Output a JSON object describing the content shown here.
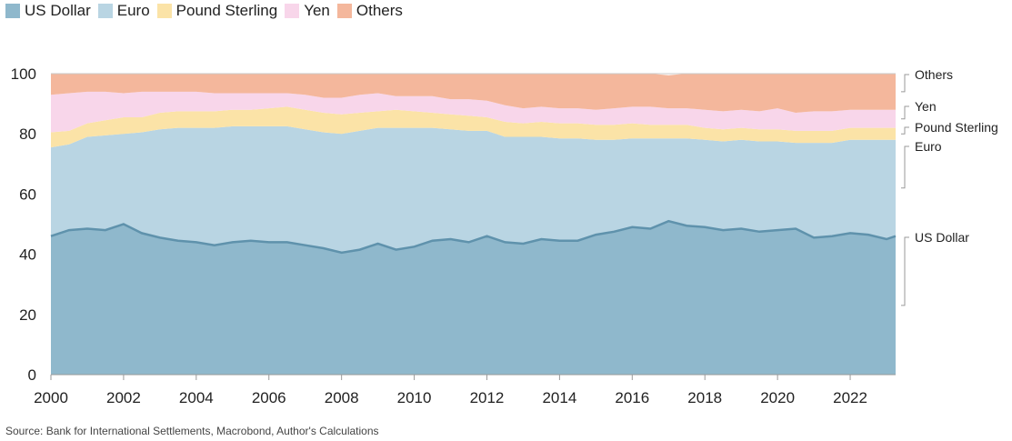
{
  "source": "Source: Bank for International Settlements, Macrobond, Author's Calculations",
  "chart_data": {
    "type": "area",
    "stacked": true,
    "xlim": [
      2000,
      2023.25
    ],
    "ylim": [
      0,
      100
    ],
    "x_ticks": [
      "2000",
      "2002",
      "2004",
      "2006",
      "2008",
      "2010",
      "2012",
      "2014",
      "2016",
      "2018",
      "2020",
      "2022"
    ],
    "y_ticks": [
      "0",
      "20",
      "40",
      "60",
      "80",
      "100"
    ],
    "legend_position": "top-left",
    "grid": true,
    "x": [
      2000,
      2000.5,
      2001,
      2001.5,
      2002,
      2002.5,
      2003,
      2003.5,
      2004,
      2004.5,
      2005,
      2005.5,
      2006,
      2006.5,
      2007,
      2007.5,
      2008,
      2008.5,
      2009,
      2009.5,
      2010,
      2010.5,
      2011,
      2011.5,
      2012,
      2012.5,
      2013,
      2013.5,
      2014,
      2014.5,
      2015,
      2015.5,
      2016,
      2016.5,
      2017,
      2017.5,
      2018,
      2018.5,
      2019,
      2019.5,
      2020,
      2020.5,
      2021,
      2021.5,
      2022,
      2022.5,
      2023,
      2023.25
    ],
    "series": [
      {
        "name": "US Dollar",
        "color": "#8fb8cc",
        "line": "#5f92ac",
        "values": [
          46,
          48,
          48.5,
          48,
          50,
          47,
          45.5,
          44.5,
          44,
          43,
          44,
          44.5,
          44,
          44,
          43,
          42,
          40.5,
          41.5,
          43.5,
          41.5,
          42.5,
          44.5,
          45,
          44,
          46,
          44,
          43.5,
          45,
          44.5,
          44.5,
          46.5,
          47.5,
          49,
          48.5,
          51,
          49.5,
          49,
          48,
          48.5,
          47.5,
          48,
          48.5,
          45.5,
          46,
          47,
          46.5,
          45,
          46
        ]
      },
      {
        "name": "Euro",
        "color": "#b9d5e3",
        "values": [
          29.5,
          28.5,
          30.5,
          31.5,
          30,
          33.5,
          36,
          37.5,
          38,
          39,
          38.5,
          38,
          38.5,
          38.5,
          38.5,
          38.5,
          39.5,
          39.5,
          38.5,
          40.5,
          39.5,
          37.5,
          36.5,
          37,
          35,
          35,
          35.5,
          34,
          34,
          34,
          31.5,
          30.5,
          29.5,
          30,
          27.5,
          29,
          29,
          29.5,
          29.5,
          30,
          29.5,
          28.5,
          31.5,
          31,
          31,
          31.5,
          33,
          32
        ]
      },
      {
        "name": "Pound Sterling",
        "color": "#fbe3a7",
        "values": [
          5,
          4.5,
          4.5,
          5,
          5.5,
          5,
          5.5,
          5.5,
          5.5,
          5.5,
          5.5,
          5.5,
          6,
          6.5,
          6.5,
          6.5,
          6.5,
          6,
          5.5,
          6,
          5.5,
          5,
          5,
          5,
          4.5,
          5,
          4.5,
          5,
          5,
          5,
          5,
          5,
          5,
          4.5,
          4.5,
          4.5,
          4,
          4,
          4,
          4,
          4,
          4,
          4,
          4,
          4,
          4,
          4,
          4
        ]
      },
      {
        "name": "Yen",
        "color": "#f8d6ea",
        "values": [
          12.5,
          12.5,
          10.5,
          9.5,
          8,
          8.5,
          7,
          6.5,
          6.5,
          6,
          5.5,
          5.5,
          5,
          4.5,
          5,
          5,
          5.5,
          6,
          6,
          4.5,
          5,
          5.5,
          5,
          5.5,
          5.5,
          5.5,
          5,
          5,
          5,
          5,
          5,
          5.5,
          5.5,
          6,
          5.5,
          5.5,
          6,
          6,
          6,
          6,
          7,
          6,
          6.5,
          6.5,
          6,
          6,
          6,
          6
        ]
      },
      {
        "name": "Others",
        "color": "#f4b79c",
        "values": [
          7,
          6.5,
          6,
          6,
          6.5,
          6,
          6,
          6,
          6,
          6.5,
          6.5,
          6.5,
          6.5,
          6.5,
          7,
          8,
          8,
          7,
          6.5,
          7.5,
          7.5,
          7.5,
          8.5,
          8.5,
          9,
          10.5,
          11.5,
          11,
          11.5,
          11.5,
          12,
          11.5,
          11,
          11,
          11,
          11.5,
          12,
          12.5,
          12,
          12.5,
          11.5,
          13,
          12.5,
          12.5,
          12,
          12,
          12,
          12
        ]
      }
    ],
    "end_labels": [
      "US Dollar",
      "Euro",
      "Pound Sterling",
      "Yen",
      "Others"
    ]
  }
}
